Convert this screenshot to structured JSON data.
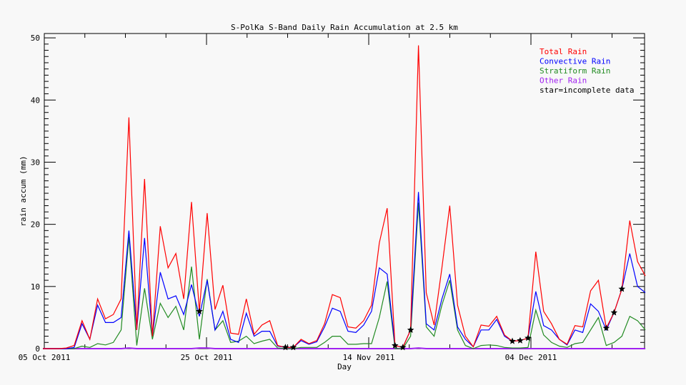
{
  "chart_data": {
    "type": "line",
    "title": "S-PolKa S-Band Daily Rain Accumulation at 2.5 km",
    "xlabel": "Day",
    "ylabel": "rain accum (mm)",
    "ylim": [
      0,
      50.7
    ],
    "yticks": [
      0,
      10,
      20,
      30,
      40,
      50
    ],
    "xtick_labels": [
      "05 Oct 2011",
      "25 Oct 2011",
      "14 Nov 2011",
      "04 Dec 2011"
    ],
    "grid": false,
    "legend_placement": "top-right",
    "legend_note": "star=incomplete data",
    "incomplete_indices": [
      20,
      31,
      32,
      45,
      46,
      47,
      60,
      61,
      62,
      72,
      73,
      74
    ],
    "series": [
      {
        "name": "Total Rain",
        "color": "#ff0000",
        "values": [
          0,
          0,
          0,
          0.1,
          0.5,
          4.5,
          1.5,
          8,
          4.8,
          5.5,
          8,
          37.2,
          3,
          27.3,
          2,
          19.7,
          13,
          15.3,
          8,
          23.6,
          6,
          21.8,
          6.3,
          10.2,
          2.5,
          2.3,
          8,
          2.3,
          3.8,
          4.5,
          0.5,
          0.2,
          0.2,
          1.5,
          0.8,
          1.3,
          4,
          8.7,
          8.2,
          3.5,
          3.3,
          4.5,
          7,
          17,
          22.6,
          0.5,
          0.2,
          3,
          48.8,
          9,
          3.8,
          13,
          23,
          7,
          2,
          0.3,
          3.8,
          3.6,
          5.2,
          2.2,
          1.2,
          1.3,
          1.7,
          15.6,
          6,
          4,
          1.5,
          0.7,
          3.7,
          3.5,
          9.3,
          11,
          3.3,
          5.8,
          9.6,
          20.6,
          14,
          11.7
        ]
      },
      {
        "name": "Convective Rain",
        "color": "#0000ff",
        "values": [
          0,
          0,
          0,
          0,
          0.2,
          4,
          1.5,
          7,
          4.2,
          4.2,
          5,
          19,
          3,
          17.8,
          2,
          12.3,
          8,
          8.5,
          5.5,
          10.3,
          5.2,
          11,
          3,
          6,
          1.5,
          1,
          5.7,
          2,
          2.8,
          2.8,
          0.4,
          0.2,
          0.2,
          1.3,
          0.7,
          1.1,
          3.5,
          6.5,
          6,
          2.8,
          2.6,
          3.8,
          6,
          13,
          12,
          0.5,
          0.2,
          3,
          25.2,
          4,
          3,
          8,
          12,
          3.5,
          1.5,
          0.3,
          3,
          3,
          4.7,
          2,
          1.2,
          1.3,
          1.7,
          9.2,
          3.7,
          3,
          1.5,
          0.6,
          3,
          2.6,
          7.2,
          6,
          3,
          5.8,
          9.6,
          15.3,
          10,
          9
        ]
      },
      {
        "name": "Stratiform Rain",
        "color": "#228b22",
        "values": [
          0,
          0,
          0,
          0,
          0,
          0.4,
          0.2,
          0.8,
          0.6,
          1,
          3,
          18,
          0.5,
          9.7,
          1.5,
          7.3,
          5,
          6.8,
          3,
          13.2,
          1.5,
          11.2,
          3,
          4.5,
          1,
          1.2,
          2,
          0.8,
          1.2,
          1.5,
          0.1,
          0,
          0,
          0.2,
          0.2,
          0.2,
          1,
          2,
          2,
          0.7,
          0.7,
          0.8,
          0.8,
          5,
          10.8,
          0,
          0,
          2,
          23.5,
          3.5,
          2,
          7,
          11,
          3,
          0.5,
          0,
          0.5,
          0.6,
          0.5,
          0.2,
          0.1,
          0.1,
          0.2,
          6.2,
          2.2,
          1,
          0.4,
          0.2,
          0.8,
          1,
          3,
          5,
          0.5,
          1,
          2,
          5.2,
          4.5,
          3
        ]
      },
      {
        "name": "Other Rain",
        "color": "#a020f0",
        "values": [
          0,
          0,
          0,
          0,
          0,
          0,
          0,
          0,
          0,
          0,
          0,
          0.1,
          0,
          0,
          0,
          0,
          0,
          0,
          0,
          0,
          0.1,
          0.1,
          0,
          0,
          0,
          0,
          0,
          0,
          0,
          0,
          0,
          0,
          0,
          0,
          0,
          0,
          0,
          0,
          0,
          0,
          0,
          0,
          0,
          0,
          0,
          0,
          0,
          0,
          0.1,
          0,
          0,
          0,
          0,
          0,
          0,
          0,
          0,
          0,
          0,
          0,
          0,
          0,
          0,
          0,
          0,
          0,
          0,
          0,
          0,
          0,
          0,
          0,
          0,
          0,
          0,
          0,
          0,
          0
        ]
      }
    ]
  }
}
